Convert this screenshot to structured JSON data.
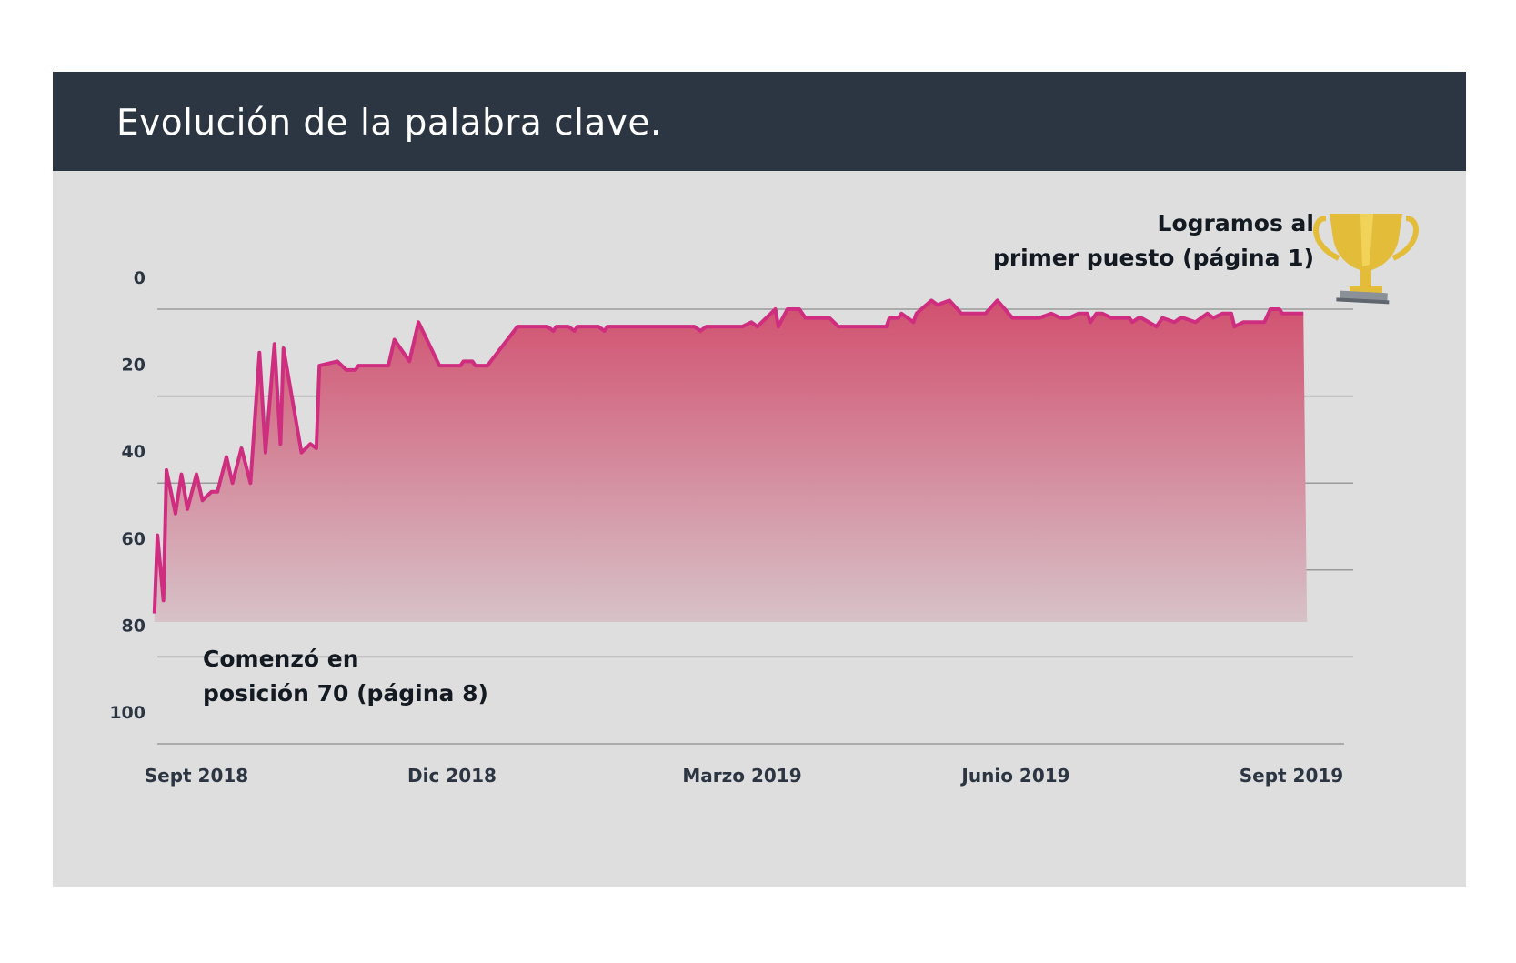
{
  "header": {
    "title": "Evolución de la palabra clave."
  },
  "colors": {
    "header_bg": "#2c3643",
    "card_bg": "#dedede",
    "line": "#cf2d7f",
    "area_top": "#d1506f",
    "area_bottom": "#d7c2c8",
    "grid": "#9a9a9a",
    "trophy_gold": "#e3bd3a",
    "trophy_base": "#8a9198"
  },
  "icons": {
    "trophy": "trophy-icon"
  },
  "chart_data": {
    "type": "area",
    "title": "Evolución de la palabra clave.",
    "xlabel": "",
    "ylabel": "",
    "y_inverted": true,
    "ylim": [
      0,
      100
    ],
    "yticks": [
      0,
      20,
      40,
      60,
      80,
      100
    ],
    "ytick_labels": [
      "0",
      "20",
      "40",
      "60",
      "80",
      "100"
    ],
    "xlim": [
      "2018-09-01",
      "2019-09-20"
    ],
    "xticks": [
      "2018-09-15",
      "2018-12-15",
      "2019-03-15",
      "2019-06-15",
      "2019-09-15"
    ],
    "xtick_labels": [
      "Sept 2018",
      "Dic 2018",
      "Marzo 2019",
      "Junio  2019",
      "Sept 2019"
    ],
    "grid": true,
    "series": [
      {
        "values": [
          [
            "2018-09-01",
            70
          ],
          [
            "2018-09-02",
            52
          ],
          [
            "2018-09-04",
            67
          ],
          [
            "2018-09-05",
            37
          ],
          [
            "2018-09-08",
            47
          ],
          [
            "2018-09-10",
            38
          ],
          [
            "2018-09-12",
            46
          ],
          [
            "2018-09-15",
            38
          ],
          [
            "2018-09-17",
            44
          ],
          [
            "2018-09-20",
            42
          ],
          [
            "2018-09-22",
            42
          ],
          [
            "2018-09-25",
            34
          ],
          [
            "2018-09-27",
            40
          ],
          [
            "2018-09-30",
            32
          ],
          [
            "2018-10-03",
            40
          ],
          [
            "2018-10-06",
            10
          ],
          [
            "2018-10-08",
            33
          ],
          [
            "2018-10-11",
            8
          ],
          [
            "2018-10-13",
            31
          ],
          [
            "2018-10-14",
            9
          ],
          [
            "2018-10-20",
            33
          ],
          [
            "2018-10-23",
            31
          ],
          [
            "2018-10-25",
            32
          ],
          [
            "2018-10-26",
            13
          ],
          [
            "2018-11-01",
            12
          ],
          [
            "2018-11-04",
            14
          ],
          [
            "2018-11-07",
            14
          ],
          [
            "2018-11-08",
            13
          ],
          [
            "2018-11-10",
            13
          ],
          [
            "2018-11-18",
            13
          ],
          [
            "2018-11-20",
            7
          ],
          [
            "2018-11-25",
            12
          ],
          [
            "2018-11-28",
            3
          ],
          [
            "2018-12-05",
            13
          ],
          [
            "2018-12-12",
            13
          ],
          [
            "2018-12-13",
            12
          ],
          [
            "2018-12-16",
            12
          ],
          [
            "2018-12-17",
            13
          ],
          [
            "2018-12-21",
            13
          ],
          [
            "2018-12-31",
            4
          ],
          [
            "2019-01-10",
            4
          ],
          [
            "2019-01-12",
            5
          ],
          [
            "2019-01-13",
            4
          ],
          [
            "2019-01-17",
            4
          ],
          [
            "2019-01-19",
            5
          ],
          [
            "2019-01-20",
            4
          ],
          [
            "2019-01-27",
            4
          ],
          [
            "2019-01-29",
            5
          ],
          [
            "2019-01-30",
            4
          ],
          [
            "2019-02-28",
            4
          ],
          [
            "2019-03-02",
            5
          ],
          [
            "2019-03-04",
            4
          ],
          [
            "2019-03-16",
            4
          ],
          [
            "2019-03-19",
            3
          ],
          [
            "2019-03-21",
            4
          ],
          [
            "2019-03-27",
            0
          ],
          [
            "2019-03-28",
            4
          ],
          [
            "2019-03-31",
            0
          ],
          [
            "2019-04-04",
            0
          ],
          [
            "2019-04-06",
            2
          ],
          [
            "2019-04-14",
            2
          ],
          [
            "2019-04-17",
            4
          ],
          [
            "2019-05-03",
            4
          ],
          [
            "2019-05-04",
            2
          ],
          [
            "2019-05-07",
            2
          ],
          [
            "2019-05-08",
            1
          ],
          [
            "2019-05-12",
            3
          ],
          [
            "2019-05-13",
            1
          ],
          [
            "2019-05-18",
            -2
          ],
          [
            "2019-05-20",
            -1
          ],
          [
            "2019-05-24",
            -2
          ],
          [
            "2019-05-28",
            1
          ],
          [
            "2019-06-05",
            1
          ],
          [
            "2019-06-09",
            -2
          ],
          [
            "2019-06-14",
            2
          ],
          [
            "2019-06-23",
            2
          ],
          [
            "2019-06-27",
            1
          ],
          [
            "2019-06-30",
            2
          ],
          [
            "2019-07-03",
            2
          ],
          [
            "2019-07-06",
            1
          ],
          [
            "2019-07-09",
            1
          ],
          [
            "2019-07-10",
            3
          ],
          [
            "2019-07-12",
            1
          ],
          [
            "2019-07-14",
            1
          ],
          [
            "2019-07-17",
            2
          ],
          [
            "2019-07-23",
            2
          ],
          [
            "2019-07-24",
            3
          ],
          [
            "2019-07-26",
            2
          ],
          [
            "2019-07-27",
            2
          ],
          [
            "2019-08-01",
            4
          ],
          [
            "2019-08-03",
            2
          ],
          [
            "2019-08-07",
            3
          ],
          [
            "2019-08-09",
            2
          ],
          [
            "2019-08-10",
            2
          ],
          [
            "2019-08-14",
            3
          ],
          [
            "2019-08-18",
            1
          ],
          [
            "2019-08-20",
            2
          ],
          [
            "2019-08-23",
            1
          ],
          [
            "2019-08-26",
            1
          ],
          [
            "2019-08-27",
            4
          ],
          [
            "2019-08-30",
            3
          ],
          [
            "2019-09-06",
            3
          ],
          [
            "2019-09-08",
            0
          ],
          [
            "2019-09-11",
            0
          ],
          [
            "2019-09-12",
            1
          ],
          [
            "2019-09-13",
            1
          ],
          [
            "2019-09-17",
            1
          ],
          [
            "2019-09-19",
            1
          ]
        ]
      }
    ],
    "annotations": [
      {
        "lines": [
          "Comenzó en",
          "posición 70 (página 8)"
        ],
        "at": [
          "2018-09-01",
          70
        ]
      },
      {
        "lines": [
          "Logramos al",
          "primer puesto (página 1)"
        ],
        "at": [
          "2019-09-19",
          1
        ]
      }
    ]
  }
}
